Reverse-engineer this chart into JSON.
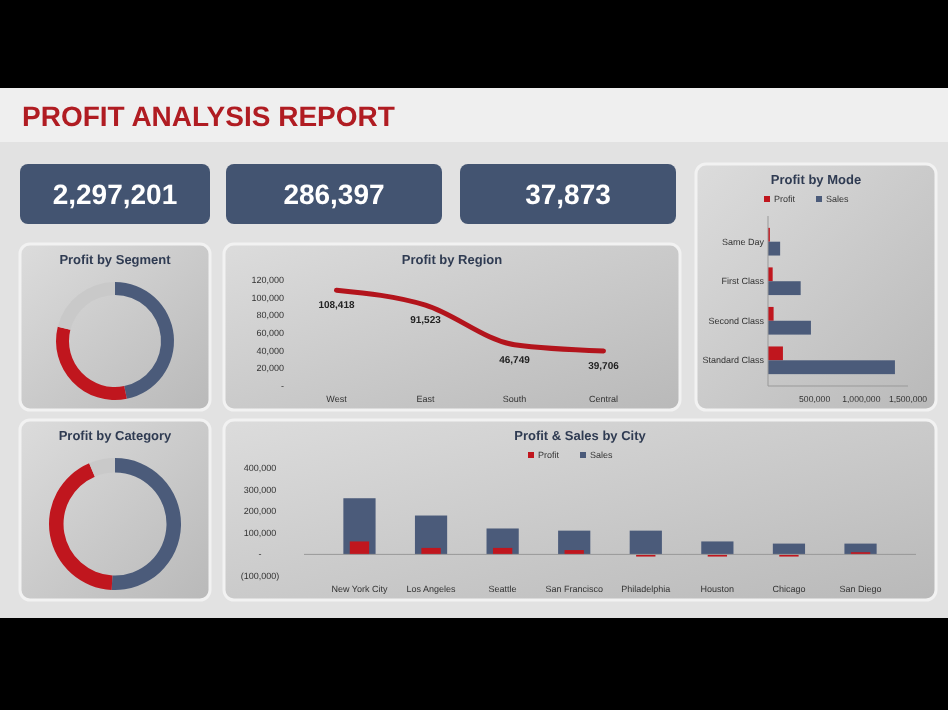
{
  "chart_data": [
    {
      "type": "other",
      "title": "PROFIT ANALYSIS REPORT",
      "annotations": [
        "2,297,201",
        "286,397",
        "37,873"
      ]
    },
    {
      "type": "donut",
      "title": "Profit by Segment",
      "categories": [
        null,
        null,
        null
      ],
      "values": [
        46.8,
        32.1,
        21.1
      ],
      "colors": [
        "#4b5b7a",
        "#c0161e",
        "#c9c9c9"
      ]
    },
    {
      "type": "line",
      "title": "Profit by Region",
      "categories": [
        "West",
        "East",
        "South",
        "Central"
      ],
      "series": [
        {
          "color": "#b3141c",
          "values": [
            108418,
            91523,
            46749,
            39706
          ],
          "value_labels": [
            "108,418",
            "91,523",
            "46,749",
            "39,706"
          ]
        }
      ],
      "ylim": [
        0,
        120000
      ],
      "yticks": [
        {
          "value": 0,
          "label": "-"
        },
        {
          "value": 20000,
          "label": "20,000"
        },
        {
          "value": 40000,
          "label": "40,000"
        },
        {
          "value": 60000,
          "label": "60,000"
        },
        {
          "value": 80000,
          "label": "80,000"
        },
        {
          "value": 100000,
          "label": "100,000"
        },
        {
          "value": 120000,
          "label": "120,000"
        }
      ]
    },
    {
      "type": "bar",
      "title": "Profit by Mode",
      "orientation": "horizontal",
      "categories": [
        "Same Day",
        "First Class",
        "Second Class",
        "Standard Class"
      ],
      "series": [
        {
          "name": "Profit",
          "color": "#c0161e",
          "values": [
            20000,
            50000,
            60000,
            160000
          ]
        },
        {
          "name": "Sales",
          "color": "#4b5b7a",
          "values": [
            130000,
            350000,
            460000,
            1360000
          ]
        }
      ],
      "xlim": [
        0,
        1500000
      ],
      "xticks": [
        {
          "value": 500000,
          "label": "500,000"
        },
        {
          "value": 1000000,
          "label": "1,000,000"
        },
        {
          "value": 1500000,
          "label": "1,500,000"
        }
      ],
      "legend": "top"
    },
    {
      "type": "donut",
      "title": "Profit by Category",
      "categories": [
        null,
        null,
        null
      ],
      "values": [
        50.8,
        42.8,
        6.4
      ],
      "colors": [
        "#4b5b7a",
        "#c0161e",
        "#c9c9c9"
      ]
    },
    {
      "type": "bar",
      "title": "Profit & Sales by City",
      "categories": [
        "New York City",
        "Los Angeles",
        "Seattle",
        "San Francisco",
        "Philadelphia",
        "Houston",
        "Chicago",
        "San Diego"
      ],
      "series": [
        {
          "name": "Profit",
          "color": "#c0161e",
          "values": [
            60000,
            30000,
            30000,
            20000,
            -10000,
            -10000,
            -10000,
            10000
          ]
        },
        {
          "name": "Sales",
          "color": "#4b5b7a",
          "values": [
            260000,
            180000,
            120000,
            110000,
            110000,
            60000,
            50000,
            50000
          ]
        }
      ],
      "ylim": [
        -100000,
        400000
      ],
      "yticks": [
        {
          "value": -100000,
          "label": "(100,000)"
        },
        {
          "value": 0,
          "label": "-"
        },
        {
          "value": 100000,
          "label": "100,000"
        },
        {
          "value": 200000,
          "label": "200,000"
        },
        {
          "value": 300000,
          "label": "300,000"
        },
        {
          "value": 400000,
          "label": "400,000"
        }
      ],
      "legend": "top"
    }
  ]
}
